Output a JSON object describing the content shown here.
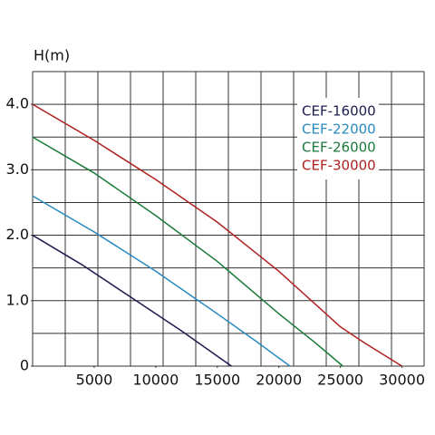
{
  "chart_data": {
    "type": "line",
    "y_label": "H(m)",
    "xlim": [
      0,
      31800
    ],
    "ylim": [
      0,
      4.5
    ],
    "xticks": [
      5000,
      10000,
      15000,
      20000,
      25000,
      30000
    ],
    "yticks": [
      0,
      {
        "value": 1,
        "label": "1.0"
      },
      {
        "value": 2,
        "label": "2.0"
      },
      {
        "value": 3,
        "label": "3.0"
      },
      {
        "value": 4,
        "label": "4.0"
      }
    ],
    "grid": true,
    "legend": "upper right",
    "series": [
      {
        "name": "CEF-16000",
        "color": "#1c1c50",
        "x": [
          0,
          4000,
          8000,
          12000,
          16150
        ],
        "values": [
          2.0,
          1.55,
          1.05,
          0.55,
          0
        ]
      },
      {
        "name": "CEF-22000",
        "color": "#2a8ac0",
        "x": [
          0,
          5000,
          10000,
          15000,
          18000,
          20900
        ],
        "values": [
          2.6,
          2.05,
          1.45,
          0.8,
          0.4,
          0
        ]
      },
      {
        "name": "CEF-26000",
        "color": "#1a7a3a",
        "x": [
          0,
          5000,
          10000,
          15000,
          20000,
          23000,
          25200
        ],
        "values": [
          3.5,
          2.95,
          2.3,
          1.6,
          0.8,
          0.35,
          0
        ]
      },
      {
        "name": "CEF-30000",
        "color": "#b02020",
        "x": [
          0,
          5000,
          10000,
          15000,
          20000,
          25000,
          27000,
          30000
        ],
        "values": [
          4.0,
          3.45,
          2.85,
          2.2,
          1.45,
          0.6,
          0.35,
          0
        ]
      }
    ]
  }
}
